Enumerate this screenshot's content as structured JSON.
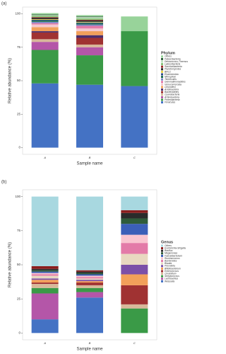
{
  "chart_data": [
    {
      "type": "stacked_bar",
      "panel": "(a)",
      "x_label": "Sample name",
      "y_label": "Relative abundance (%)",
      "legend_title": "Phylum",
      "categories": [
        "A",
        "B",
        "C"
      ],
      "ylim": [
        -5,
        105
      ],
      "yticks": [
        0,
        25,
        50,
        75,
        100
      ],
      "series": [
        {
          "name": "Firmicutes",
          "color": "#4472c4",
          "values": [
            48,
            47,
            46
          ]
        },
        {
          "name": "Proteobacteria",
          "color": "#3a9a47",
          "values": [
            25,
            22,
            41
          ]
        },
        {
          "name": "Actinobacteria",
          "color": "#b456a8",
          "values": [
            6,
            6,
            0
          ]
        },
        {
          "name": "Cyanobacteria",
          "color": "#d8b89a",
          "values": [
            2,
            2,
            0
          ]
        },
        {
          "name": "Bacteroidetes",
          "color": "#a03232",
          "values": [
            5,
            5,
            0
          ]
        },
        {
          "name": "Acidobacteria",
          "color": "#4b2f6e",
          "values": [
            1,
            2,
            0
          ]
        },
        {
          "name": "Chloroflexi",
          "color": "#f2a05a",
          "values": [
            3,
            3,
            0
          ]
        },
        {
          "name": "Verrucomicrobia",
          "color": "#f4c9d0",
          "values": [
            2,
            2,
            0
          ]
        },
        {
          "name": "Gemmatimonadetes",
          "color": "#e37aa8",
          "values": [
            1,
            2,
            0
          ]
        },
        {
          "name": "Tenericutes",
          "color": "#7a86c6",
          "values": [
            1,
            1,
            0
          ]
        },
        {
          "name": "Nitrospirae",
          "color": "#1f6e50",
          "values": [
            1,
            1,
            0
          ]
        },
        {
          "name": "Elusimicrobia",
          "color": "#2d4a8a",
          "values": [
            0.5,
            0.5,
            0
          ]
        },
        {
          "name": "BRC1",
          "color": "#e6d24a",
          "values": [
            0.5,
            0.5,
            0
          ]
        },
        {
          "name": "Planctomycetes",
          "color": "#2b2b2b",
          "values": [
            1,
            1,
            0
          ]
        },
        {
          "name": "Saccharibacteria",
          "color": "#9c2c2c",
          "values": [
            0.5,
            0.5,
            0
          ]
        },
        {
          "name": "Latescibacteria",
          "color": "#87c47a",
          "values": [
            1,
            1,
            0
          ]
        },
        {
          "name": "Deinococcus-Thermus",
          "color": "#bfe0c0",
          "values": [
            0.5,
            1,
            0
          ]
        },
        {
          "name": "Patescibacteria",
          "color": "#2f5c3a",
          "values": [
            0.5,
            0.5,
            0
          ]
        },
        {
          "name": "Others",
          "color": "#98d39a",
          "values": [
            1,
            1,
            11
          ]
        }
      ]
    },
    {
      "type": "stacked_bar",
      "panel": "(b)",
      "x_label": "Sample name",
      "y_label": "Relative abundance (%)",
      "legend_title": "Genus",
      "categories": [
        "A",
        "B",
        "C"
      ],
      "ylim": [
        -5,
        105
      ],
      "yticks": [
        0,
        25,
        50,
        75,
        100
      ],
      "series": [
        {
          "name": "Weissella",
          "color": "#4472c4",
          "values": [
            10,
            26,
            0
          ]
        },
        {
          "name": "Lactobacillus",
          "color": "#b456a8",
          "values": [
            19,
            4,
            0
          ]
        },
        {
          "name": "Streptococcus",
          "color": "#3a9a47",
          "values": [
            4,
            3,
            18
          ]
        },
        {
          "name": "Clostridium",
          "color": "#d8b89a",
          "values": [
            3,
            2,
            3
          ]
        },
        {
          "name": "Enterococcus",
          "color": "#a03232",
          "values": [
            1,
            2,
            14
          ]
        },
        {
          "name": "Bifidobacterium",
          "color": "#f2a05a",
          "values": [
            2,
            1,
            8
          ]
        },
        {
          "name": "Prevotella",
          "color": "#7b4fa8",
          "values": [
            1,
            1,
            7
          ]
        },
        {
          "name": "Blautia",
          "color": "#e8d8c0",
          "values": [
            2,
            1,
            8
          ]
        },
        {
          "name": "Bacteroides",
          "color": "#e37aa8",
          "values": [
            1,
            1,
            8
          ]
        },
        {
          "name": "Ruminococcus",
          "color": "#f9c5d0",
          "values": [
            1,
            1,
            6
          ]
        },
        {
          "name": "Faecalibacterium",
          "color": "#3b5fb8",
          "values": [
            1,
            1,
            8
          ]
        },
        {
          "name": "Megamonas",
          "color": "#2f5c3a",
          "values": [
            1,
            1,
            4
          ]
        },
        {
          "name": "Bacillus",
          "color": "#2b2b2b",
          "values": [
            1,
            1,
            4
          ]
        },
        {
          "name": "Escherichia-Shigella",
          "color": "#8b1e1e",
          "values": [
            2,
            1,
            2
          ]
        },
        {
          "name": "Others",
          "color": "#a8d8e0",
          "values": [
            51,
            54,
            10
          ]
        }
      ]
    }
  ]
}
